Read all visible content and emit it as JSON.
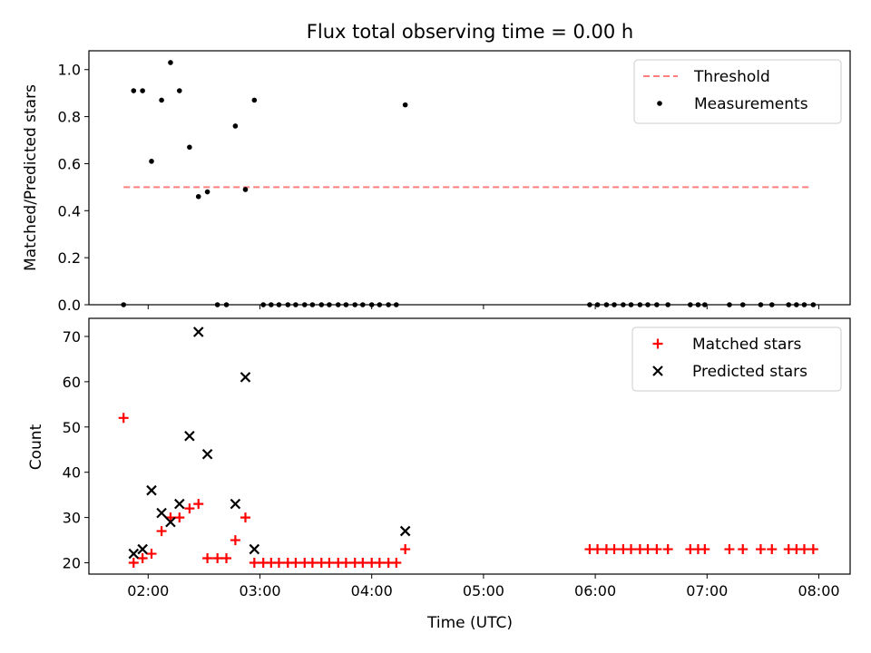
{
  "chart_data": {
    "title": "Flux total observing time = 0.00 h",
    "xlabel": "Time (UTC)",
    "x_ticks": [
      "02:00",
      "03:00",
      "04:00",
      "05:00",
      "06:00",
      "07:00",
      "08:00"
    ],
    "x_tick_values": [
      2.0,
      3.0,
      4.0,
      5.0,
      6.0,
      7.0,
      8.0
    ],
    "xlim": [
      1.47,
      8.28
    ],
    "x_unit": "hours UTC",
    "panels": [
      {
        "type": "scatter",
        "ylabel": "Matched/Predicted stars",
        "ylim": [
          0,
          1.08
        ],
        "y_ticks": [
          "0.0",
          "0.2",
          "0.4",
          "0.6",
          "0.8",
          "1.0"
        ],
        "y_tick_values": [
          0.0,
          0.2,
          0.4,
          0.6,
          0.8,
          1.0
        ],
        "legend_position": "top-right",
        "threshold": {
          "name": "Threshold",
          "value": 0.5,
          "x_start": 1.78,
          "x_end": 7.92,
          "color": "#ff7f7f",
          "style": "dashed"
        },
        "series": [
          {
            "name": "Measurements",
            "marker": "dot",
            "color": "#000000",
            "x": [
              1.78,
              1.87,
              1.95,
              2.03,
              2.12,
              2.2,
              2.28,
              2.37,
              2.45,
              2.53,
              2.62,
              2.7,
              2.78,
              2.87,
              2.95,
              3.03,
              3.1,
              3.17,
              3.25,
              3.32,
              3.4,
              3.47,
              3.55,
              3.62,
              3.7,
              3.77,
              3.85,
              3.92,
              4.0,
              4.07,
              4.15,
              4.22,
              4.3,
              5.95,
              6.02,
              6.1,
              6.17,
              6.25,
              6.32,
              6.4,
              6.47,
              6.55,
              6.65,
              6.85,
              6.92,
              6.98,
              7.2,
              7.32,
              7.48,
              7.58,
              7.73,
              7.8,
              7.87,
              7.95
            ],
            "y": [
              0.0,
              0.91,
              0.91,
              0.61,
              0.87,
              1.03,
              0.91,
              0.67,
              0.46,
              0.48,
              0.0,
              0.0,
              0.76,
              0.49,
              0.87,
              0.0,
              0.0,
              0.0,
              0.0,
              0.0,
              0.0,
              0.0,
              0.0,
              0.0,
              0.0,
              0.0,
              0.0,
              0.0,
              0.0,
              0.0,
              0.0,
              0.0,
              0.85,
              0.0,
              0.0,
              0.0,
              0.0,
              0.0,
              0.0,
              0.0,
              0.0,
              0.0,
              0.0,
              0.0,
              0.0,
              0.0,
              0.0,
              0.0,
              0.0,
              0.0,
              0.0,
              0.0,
              0.0,
              0.0
            ]
          }
        ]
      },
      {
        "type": "scatter",
        "ylabel": "Count",
        "ylim": [
          17.5,
          74
        ],
        "y_ticks": [
          "20",
          "30",
          "40",
          "50",
          "60",
          "70"
        ],
        "y_tick_values": [
          20,
          30,
          40,
          50,
          60,
          70
        ],
        "legend_position": "top-right",
        "series": [
          {
            "name": "Matched stars",
            "marker": "plus",
            "color": "#ff0000",
            "x": [
              1.78,
              1.87,
              1.95,
              2.03,
              2.12,
              2.2,
              2.28,
              2.37,
              2.45,
              2.53,
              2.62,
              2.7,
              2.78,
              2.87,
              2.95,
              3.03,
              3.1,
              3.17,
              3.25,
              3.32,
              3.4,
              3.47,
              3.55,
              3.62,
              3.7,
              3.77,
              3.85,
              3.92,
              4.0,
              4.07,
              4.15,
              4.22,
              4.3,
              5.95,
              6.02,
              6.1,
              6.17,
              6.25,
              6.32,
              6.4,
              6.47,
              6.55,
              6.65,
              6.85,
              6.92,
              6.98,
              7.2,
              7.32,
              7.48,
              7.58,
              7.73,
              7.8,
              7.87,
              7.95
            ],
            "y": [
              52,
              20,
              21,
              22,
              27,
              30,
              30,
              32,
              33,
              21,
              21,
              21,
              25,
              30,
              20,
              20,
              20,
              20,
              20,
              20,
              20,
              20,
              20,
              20,
              20,
              20,
              20,
              20,
              20,
              20,
              20,
              20,
              23,
              23,
              23,
              23,
              23,
              23,
              23,
              23,
              23,
              23,
              23,
              23,
              23,
              23,
              23,
              23,
              23,
              23,
              23,
              23,
              23,
              23
            ]
          },
          {
            "name": "Predicted stars",
            "marker": "cross",
            "color": "#000000",
            "x": [
              1.87,
              1.95,
              2.03,
              2.12,
              2.2,
              2.28,
              2.37,
              2.45,
              2.53,
              2.78,
              2.87,
              2.95,
              4.3
            ],
            "y": [
              22,
              23,
              36,
              31,
              29,
              33,
              48,
              71,
              44,
              33,
              61,
              23,
              27
            ]
          }
        ]
      }
    ]
  }
}
